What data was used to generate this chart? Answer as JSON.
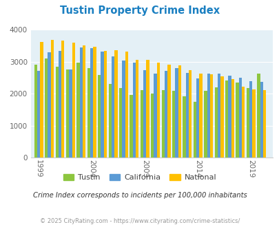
{
  "title": "Tustin Property Crime Index",
  "title_color": "#1a7fc1",
  "subtitle": "Crime Index corresponds to incidents per 100,000 inhabitants",
  "footer": "© 2025 CityRating.com - https://www.cityrating.com/crime-statistics/",
  "years": [
    1999,
    2000,
    2001,
    2002,
    2003,
    2004,
    2005,
    2006,
    2007,
    2008,
    2009,
    2010,
    2011,
    2012,
    2013,
    2014,
    2015,
    2016,
    2017,
    2018,
    2019,
    2020
  ],
  "xtick_labels": [
    "1999",
    "2004",
    "2009",
    "2014",
    "2019"
  ],
  "xtick_positions": [
    1999,
    2004,
    2009,
    2014,
    2019
  ],
  "tustin": [
    2900,
    3100,
    2850,
    2750,
    2970,
    2800,
    2580,
    2300,
    2180,
    1960,
    2120,
    2010,
    2120,
    2090,
    1910,
    1740,
    2080,
    2200,
    2420,
    2340,
    2180,
    2620
  ],
  "california": [
    2720,
    3300,
    3340,
    2760,
    3440,
    3420,
    3320,
    3160,
    3030,
    2960,
    2730,
    2620,
    2700,
    2790,
    2650,
    2480,
    2620,
    2620,
    2560,
    2500,
    2380,
    2360
  ],
  "national": [
    3620,
    3680,
    3650,
    3600,
    3500,
    3460,
    3340,
    3360,
    3310,
    3060,
    3050,
    2960,
    2900,
    2880,
    2740,
    2620,
    2600,
    2540,
    2450,
    2220,
    2130,
    2100
  ],
  "bar_colors": {
    "tustin": "#8dc63f",
    "california": "#5b9bd5",
    "national": "#ffc000"
  },
  "plot_bg": "#e4f0f6",
  "ylim": [
    0,
    4000
  ],
  "yticks": [
    0,
    1000,
    2000,
    3000,
    4000
  ],
  "legend_labels": [
    "Tustin",
    "California",
    "National"
  ],
  "bar_width": 0.28
}
